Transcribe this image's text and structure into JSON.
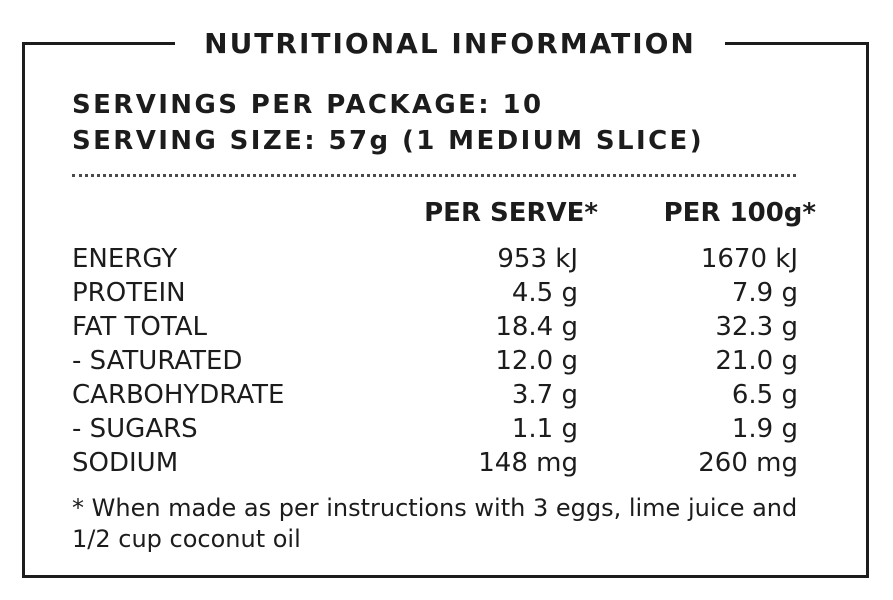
{
  "panel": {
    "title": "NUTRITIONAL INFORMATION",
    "servings_per_package": "SERVINGS PER PACKAGE: 10",
    "serving_size": "SERVING SIZE: 57g (1 MEDIUM SLICE)"
  },
  "table": {
    "headers": {
      "per_serve": "PER SERVE*",
      "per_100g": "PER 100g*"
    },
    "rows": [
      {
        "nutrient": "ENERGY",
        "per_serve": "953 kJ",
        "per_100g": "1670 kJ"
      },
      {
        "nutrient": "PROTEIN",
        "per_serve": "4.5 g",
        "per_100g": "7.9 g"
      },
      {
        "nutrient": "FAT TOTAL",
        "per_serve": "18.4 g",
        "per_100g": "32.3 g"
      },
      {
        "nutrient": "- SATURATED",
        "per_serve": "12.0 g",
        "per_100g": "21.0 g"
      },
      {
        "nutrient": "CARBOHYDRATE",
        "per_serve": "3.7 g",
        "per_100g": "6.5 g"
      },
      {
        "nutrient": "- SUGARS",
        "per_serve": "1.1 g",
        "per_100g": "1.9 g"
      },
      {
        "nutrient": "SODIUM",
        "per_serve": "148 mg",
        "per_100g": "260 mg"
      }
    ]
  },
  "footnote": "* When made as per instructions with 3 eggs, lime juice and 1/2 cup coconut oil"
}
